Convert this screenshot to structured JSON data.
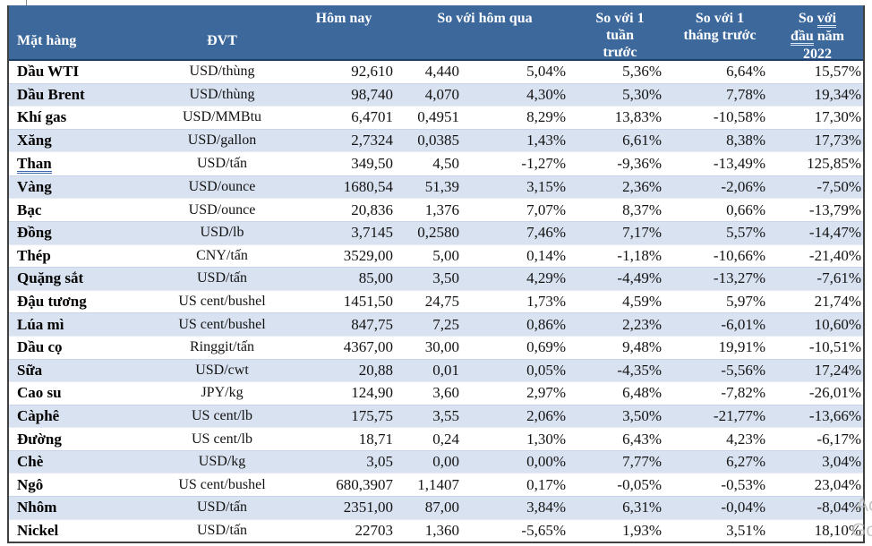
{
  "header": {
    "commodity": "Mặt hàng",
    "unit": "ĐVT",
    "today": "Hôm nay",
    "vs_yesterday": "So với hôm qua",
    "vs_week": {
      "l1": "So với 1",
      "l2": "tuần",
      "l3": "trước"
    },
    "vs_month": {
      "l1": "So với 1",
      "l2": "tháng trước"
    },
    "vs_ytd": {
      "l1a": "So ",
      "l1b": "với",
      "l2a": "đầu",
      "l2b": " năm",
      "l3": "2022"
    }
  },
  "colors": {
    "header_bg": "#3c689b",
    "header_text": "#ffffff",
    "band_row_bg": "#d9e2f0",
    "outer_border": "#404040",
    "header_border": "#1c3d66",
    "spellcheck_underline": "#3a66b0"
  },
  "watermark": {
    "fragment1": "Ac",
    "fragment2": "Go"
  },
  "table": {
    "rows": [
      {
        "name": "Dầu WTI",
        "spellcheck": false,
        "unit": "USD/thùng",
        "today": "92,610",
        "d1": "4,440",
        "p1": "5,04%",
        "pw": "5,36%",
        "pm": "6,64%",
        "py": "15,57%"
      },
      {
        "name": "Dầu Brent",
        "spellcheck": false,
        "unit": "USD/thùng",
        "today": "98,740",
        "d1": "4,070",
        "p1": "4,30%",
        "pw": "5,30%",
        "pm": "7,78%",
        "py": "19,34%"
      },
      {
        "name": "Khí gas",
        "spellcheck": false,
        "unit": "USD/MMBtu",
        "today": "6,4701",
        "d1": "0,4951",
        "p1": "8,29%",
        "pw": "13,83%",
        "pm": "-10,58%",
        "py": "17,30%"
      },
      {
        "name": "Xăng",
        "spellcheck": false,
        "unit": "USD/gallon",
        "today": "2,7324",
        "d1": "0,0385",
        "p1": "1,43%",
        "pw": "6,61%",
        "pm": "8,38%",
        "py": "17,73%"
      },
      {
        "name": "Than",
        "spellcheck": true,
        "unit": "USD/tấn",
        "today": "349,50",
        "d1": "4,50",
        "p1": "-1,27%",
        "pw": "-9,36%",
        "pm": "-13,49%",
        "py": "125,85%"
      },
      {
        "name": "Vàng",
        "spellcheck": false,
        "unit": "USD/ounce",
        "today": "1680,54",
        "d1": "51,39",
        "p1": "3,15%",
        "pw": "2,36%",
        "pm": "-2,06%",
        "py": "-7,50%"
      },
      {
        "name": "Bạc",
        "spellcheck": false,
        "unit": "USD/ounce",
        "today": "20,836",
        "d1": "1,376",
        "p1": "7,07%",
        "pw": "8,37%",
        "pm": "0,66%",
        "py": "-13,79%"
      },
      {
        "name": "Đồng",
        "spellcheck": false,
        "unit": "USD/lb",
        "today": "3,7145",
        "d1": "0,2580",
        "p1": "7,46%",
        "pw": "7,17%",
        "pm": "5,57%",
        "py": "-14,47%"
      },
      {
        "name": "Thép",
        "spellcheck": false,
        "unit": "CNY/tấn",
        "today": "3529,00",
        "d1": "5,00",
        "p1": "0,14%",
        "pw": "-1,18%",
        "pm": "-10,66%",
        "py": "-21,40%"
      },
      {
        "name": "Quặng sắt",
        "spellcheck": false,
        "unit": "USD/tấn",
        "today": "85,00",
        "d1": "3,50",
        "p1": "4,29%",
        "pw": "-4,49%",
        "pm": "-13,27%",
        "py": "-7,61%"
      },
      {
        "name": "Đậu tương",
        "spellcheck": false,
        "unit": "US cent/bushel",
        "today": "1451,50",
        "d1": "24,75",
        "p1": "1,73%",
        "pw": "4,59%",
        "pm": "5,97%",
        "py": "21,74%"
      },
      {
        "name": "Lúa mì",
        "spellcheck": false,
        "unit": "US cent/bushel",
        "today": "847,75",
        "d1": "7,25",
        "p1": "0,86%",
        "pw": "2,23%",
        "pm": "-6,01%",
        "py": "10,60%"
      },
      {
        "name": "Dầu cọ",
        "spellcheck": false,
        "unit": "Ringgit/tấn",
        "today": "4367,00",
        "d1": "30,00",
        "p1": "0,69%",
        "pw": "9,48%",
        "pm": "19,91%",
        "py": "-10,51%"
      },
      {
        "name": "Sữa",
        "spellcheck": false,
        "unit": "USD/cwt",
        "today": "20,88",
        "d1": "0,01",
        "p1": "0,05%",
        "pw": "-4,35%",
        "pm": "-5,56%",
        "py": "17,24%"
      },
      {
        "name": "Cao su",
        "spellcheck": false,
        "unit": "JPY/kg",
        "today": "124,90",
        "d1": "3,60",
        "p1": "2,97%",
        "pw": "6,48%",
        "pm": "-7,82%",
        "py": "-26,01%"
      },
      {
        "name": "Càphê",
        "spellcheck": false,
        "unit": "US cent/lb",
        "today": "175,75",
        "d1": "3,55",
        "p1": "2,06%",
        "pw": "3,50%",
        "pm": "-21,77%",
        "py": "-13,66%"
      },
      {
        "name": "Đường",
        "spellcheck": false,
        "unit": "US cent/lb",
        "today": "18,71",
        "d1": "0,24",
        "p1": "1,30%",
        "pw": "6,43%",
        "pm": "4,23%",
        "py": "-6,17%"
      },
      {
        "name": "Chè",
        "spellcheck": false,
        "unit": "USD/kg",
        "today": "3,05",
        "d1": "0,00",
        "p1": "0,00%",
        "pw": "7,77%",
        "pm": "6,27%",
        "py": "3,04%"
      },
      {
        "name": "Ngô",
        "spellcheck": false,
        "unit": "US cent/bushel",
        "today": "680,3907",
        "d1": "1,1407",
        "p1": "0,17%",
        "pw": "-0,05%",
        "pm": "-0,53%",
        "py": "23,04%"
      },
      {
        "name": "Nhôm",
        "spellcheck": false,
        "unit": "USD/tấn",
        "today": "2351,00",
        "d1": "87,00",
        "p1": "3,84%",
        "pw": "6,31%",
        "pm": "-0,04%",
        "py": "-8,04%"
      },
      {
        "name": "Nickel",
        "spellcheck": false,
        "unit": "USD/tấn",
        "today": "22703",
        "d1": "1,360",
        "p1": "-5,65%",
        "pw": "1,93%",
        "pm": "3,51%",
        "py": "18,10%"
      }
    ]
  }
}
